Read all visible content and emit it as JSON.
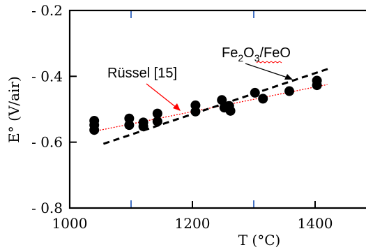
{
  "chart_data": {
    "type": "scatter",
    "xlabel": "T (°C)",
    "ylabel": "E° (V/air)",
    "xlim": [
      1000,
      1500
    ],
    "ylim": [
      -0.8,
      -0.2
    ],
    "x_ticks": [
      1000,
      1200,
      1400
    ],
    "x_tick_labels": [
      "1000",
      "1200",
      "1400"
    ],
    "x_minor_ticks": [
      1100,
      1300
    ],
    "y_ticks": [
      -0.2,
      -0.4,
      -0.6,
      -0.8
    ],
    "y_tick_labels": [
      "- 0.2",
      "- 0.4",
      "- 0.6",
      "- 0.8"
    ],
    "grid": false,
    "points": [
      {
        "x": 1040,
        "y": -0.535
      },
      {
        "x": 1040,
        "y": -0.548
      },
      {
        "x": 1040,
        "y": -0.563
      },
      {
        "x": 1097,
        "y": -0.528
      },
      {
        "x": 1097,
        "y": -0.548
      },
      {
        "x": 1120,
        "y": -0.54
      },
      {
        "x": 1120,
        "y": -0.552
      },
      {
        "x": 1143,
        "y": -0.513
      },
      {
        "x": 1143,
        "y": -0.537
      },
      {
        "x": 1205,
        "y": -0.488
      },
      {
        "x": 1205,
        "y": -0.507
      },
      {
        "x": 1248,
        "y": -0.472
      },
      {
        "x": 1252,
        "y": -0.495
      },
      {
        "x": 1260,
        "y": -0.49
      },
      {
        "x": 1262,
        "y": -0.505
      },
      {
        "x": 1302,
        "y": -0.45
      },
      {
        "x": 1315,
        "y": -0.468
      },
      {
        "x": 1358,
        "y": -0.445
      },
      {
        "x": 1403,
        "y": -0.413
      },
      {
        "x": 1403,
        "y": -0.427
      }
    ],
    "lines": [
      {
        "name": "Rüssel [15]",
        "color": "#ff0000",
        "style": "dotted",
        "x": [
          1040,
          1420
        ],
        "y": [
          -0.567,
          -0.425
        ]
      },
      {
        "name": "Fe2O3/FeO",
        "color": "#000000",
        "style": "dashed",
        "x": [
          1055,
          1425
        ],
        "y": [
          -0.605,
          -0.375
        ]
      }
    ],
    "annotations": [
      {
        "text": "Rüssel [15]",
        "color": "#ff0000"
      },
      {
        "main": "Fe",
        "sub1": "2",
        "mid": "O",
        "sub2": "3",
        "tail": "/FeO",
        "color": "#000000"
      }
    ]
  },
  "colors": {
    "point": "#000000",
    "minor_tick": "#4472c4",
    "red_line": "#ff0000",
    "black_line": "#000000",
    "squiggle": "#ff0000"
  }
}
